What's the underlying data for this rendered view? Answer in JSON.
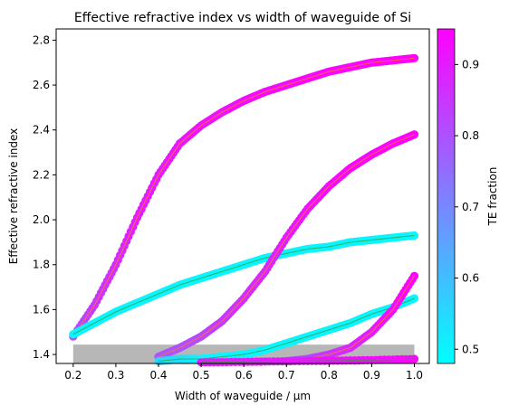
{
  "chart_data": {
    "type": "scatter",
    "title": "Effective refractive index vs width of waveguide of Si",
    "xlabel": "Width of waveguide / µm",
    "ylabel": "Effective refractive index",
    "xlim": [
      0.16,
      1.035
    ],
    "ylim": [
      1.36,
      2.85
    ],
    "xticks": [
      "0.2",
      "0.3",
      "0.4",
      "0.5",
      "0.6",
      "0.7",
      "0.8",
      "0.9",
      "1.0"
    ],
    "yticks": [
      "1.4",
      "1.6",
      "1.8",
      "2.0",
      "2.2",
      "2.4",
      "2.6",
      "2.8"
    ],
    "grid": false,
    "colorbar": {
      "label": "TE fraction",
      "range": [
        0.48,
        0.95
      ],
      "ticks": [
        "0.5",
        "0.6",
        "0.7",
        "0.8",
        "0.9"
      ],
      "colormap": "cool",
      "color_low": "#00ffff",
      "color_high": "#ff00ff"
    },
    "cladding_band": {
      "x_range": [
        0.2,
        1.0
      ],
      "y_range": [
        1.36,
        1.444
      ],
      "color": "#999999"
    },
    "series": [
      {
        "x": [
          0.2,
          0.25,
          0.3,
          0.35,
          0.4,
          0.45,
          0.5,
          0.55,
          0.6,
          0.65,
          0.7,
          0.75,
          0.8,
          0.85,
          0.9,
          0.95,
          1.0
        ],
        "y": [
          1.48,
          1.62,
          1.8,
          2.01,
          2.2,
          2.34,
          2.42,
          2.48,
          2.53,
          2.57,
          2.6,
          2.63,
          2.66,
          2.68,
          2.7,
          2.71,
          2.72
        ],
        "te_fraction": [
          0.8,
          0.85,
          0.87,
          0.9,
          0.9,
          0.91,
          0.92,
          0.92,
          0.93,
          0.93,
          0.93,
          0.94,
          0.94,
          0.94,
          0.94,
          0.95,
          0.95
        ]
      },
      {
        "x": [
          0.2,
          0.25,
          0.3,
          0.35,
          0.4,
          0.45,
          0.5,
          0.55,
          0.6,
          0.65,
          0.7,
          0.75,
          0.8,
          0.85,
          0.9,
          0.95,
          1.0
        ],
        "y": [
          1.49,
          1.54,
          1.59,
          1.63,
          1.67,
          1.71,
          1.74,
          1.77,
          1.8,
          1.83,
          1.85,
          1.87,
          1.88,
          1.9,
          1.91,
          1.92,
          1.93
        ],
        "te_fraction": [
          0.5,
          0.5,
          0.5,
          0.5,
          0.5,
          0.5,
          0.5,
          0.5,
          0.5,
          0.5,
          0.5,
          0.5,
          0.5,
          0.5,
          0.5,
          0.5,
          0.5
        ]
      },
      {
        "x": [
          0.4,
          0.45,
          0.5,
          0.55,
          0.6,
          0.65,
          0.7,
          0.75,
          0.8,
          0.85,
          0.9,
          0.95,
          1.0
        ],
        "y": [
          1.39,
          1.43,
          1.48,
          1.55,
          1.65,
          1.77,
          1.92,
          2.05,
          2.15,
          2.23,
          2.29,
          2.34,
          2.38
        ],
        "te_fraction": [
          0.8,
          0.8,
          0.82,
          0.85,
          0.87,
          0.88,
          0.9,
          0.92,
          0.93,
          0.94,
          0.94,
          0.95,
          0.95
        ]
      },
      {
        "x": [
          0.4,
          0.45,
          0.5,
          0.55,
          0.6,
          0.65,
          0.7,
          0.75,
          0.8,
          0.85,
          0.9,
          0.95,
          1.0
        ],
        "y": [
          1.37,
          1.38,
          1.38,
          1.39,
          1.4,
          1.42,
          1.45,
          1.48,
          1.51,
          1.54,
          1.58,
          1.61,
          1.65
        ],
        "te_fraction": [
          0.55,
          0.55,
          0.5,
          0.5,
          0.5,
          0.5,
          0.5,
          0.5,
          0.5,
          0.5,
          0.5,
          0.5,
          0.5
        ]
      },
      {
        "x": [
          0.7,
          0.75,
          0.8,
          0.85,
          0.9,
          0.95,
          1.0
        ],
        "y": [
          1.37,
          1.38,
          1.4,
          1.43,
          1.5,
          1.6,
          1.75
        ],
        "te_fraction": [
          0.8,
          0.82,
          0.85,
          0.88,
          0.9,
          0.93,
          0.95
        ]
      },
      {
        "x": [
          0.5,
          0.6,
          0.7,
          0.8,
          0.9,
          1.0
        ],
        "y": [
          1.365,
          1.367,
          1.37,
          1.372,
          1.375,
          1.38
        ],
        "te_fraction": [
          0.9,
          0.9,
          0.9,
          0.92,
          0.93,
          0.94
        ]
      }
    ]
  }
}
